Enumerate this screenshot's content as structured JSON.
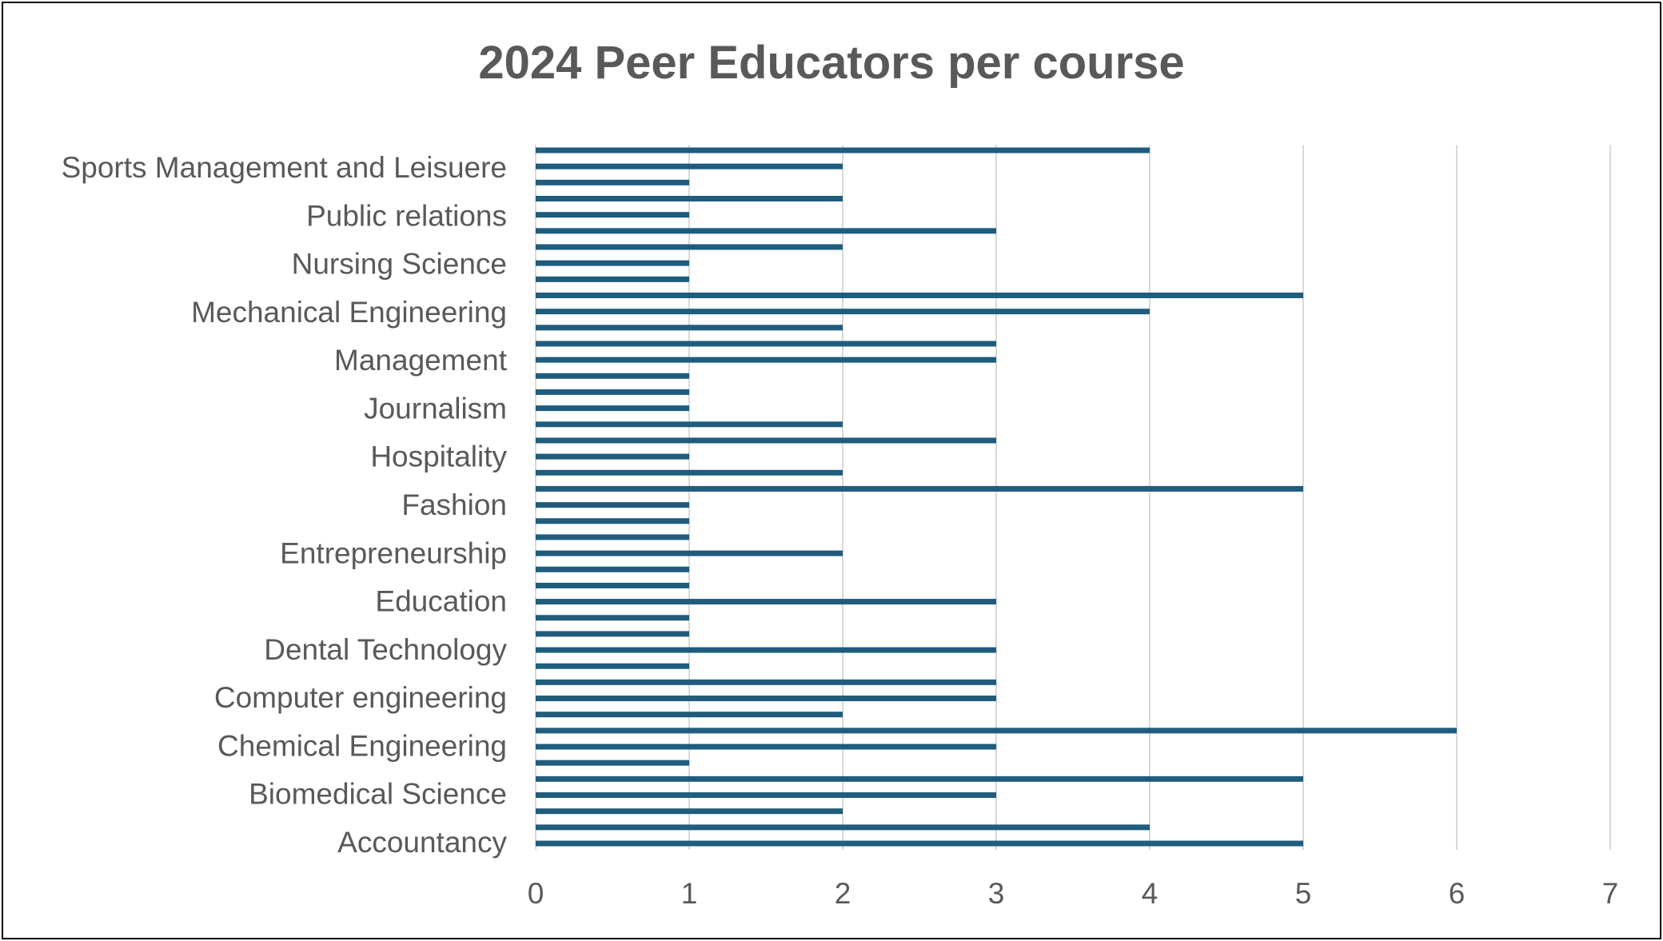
{
  "chart_data": {
    "type": "bar",
    "orientation": "horizontal",
    "title": "2024 Peer Educators per course",
    "xlabel": "",
    "ylabel": "",
    "xlim": [
      0,
      7
    ],
    "x_ticks": [
      "0",
      "1",
      "2",
      "3",
      "4",
      "5",
      "6",
      "7"
    ],
    "grid": "vertical",
    "legend": "none",
    "category_labels_top_to_bottom": [
      "Sports Management and Leisuere",
      "Public relations",
      "Nursing Science",
      "Mechanical Engineering",
      "Management",
      "Journalism",
      "Hospitality",
      "Fashion",
      "Entrepreneurship",
      "Education",
      "Dental Technology ",
      "Computer engineering",
      "Chemical Engineering",
      "Biomedical Science",
      "Accountancy"
    ],
    "values_top_to_bottom": [
      4,
      2,
      1,
      2,
      1,
      3,
      2,
      1,
      1,
      5,
      4,
      2,
      3,
      3,
      1,
      1,
      1,
      2,
      3,
      1,
      2,
      5,
      1,
      1,
      1,
      2,
      1,
      1,
      3,
      1,
      1,
      3,
      1,
      3,
      3,
      2,
      6,
      3,
      1,
      5,
      3,
      2,
      4,
      5
    ],
    "bar_color": "#1f5c7d",
    "grid_color": "#d9d9d9",
    "text_color": "#595959"
  }
}
